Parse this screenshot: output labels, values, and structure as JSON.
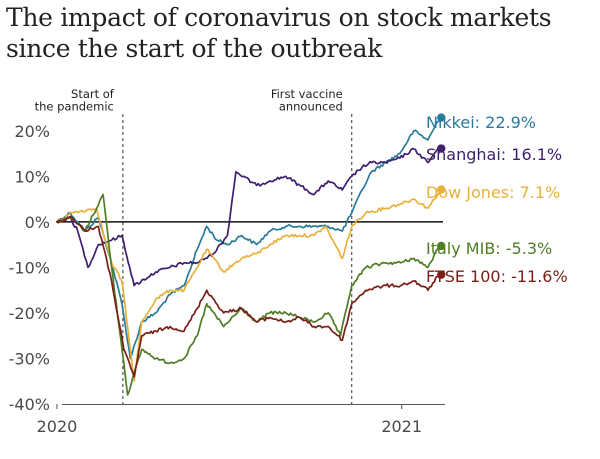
{
  "header": {
    "title_line1": "The impact of coronavirus on stock markets",
    "title_line2": "since the start of the outbreak"
  },
  "chart_data": {
    "type": "line",
    "title": "The impact of coronavirus on stock markets since the start of the outbreak",
    "xlabel": "",
    "ylabel": "",
    "xlim": [
      "2019-12-31",
      "2021-02-16"
    ],
    "ylim": [
      -40,
      25
    ],
    "x_ticks": [
      {
        "date": "2020-01-01",
        "label": "2020"
      },
      {
        "date": "2021-01-01",
        "label": "2021"
      }
    ],
    "y_ticks": [
      {
        "value": 20,
        "label": "20%"
      },
      {
        "value": 10,
        "label": "10%"
      },
      {
        "value": 0,
        "label": "0%"
      },
      {
        "value": -10,
        "label": "-10%"
      },
      {
        "value": -20,
        "label": "-20%"
      },
      {
        "value": -30,
        "label": "-30%"
      },
      {
        "value": -40,
        "label": "-40%"
      }
    ],
    "grid": false,
    "legend": "direct labels at right",
    "annotations": [
      {
        "date": "2020-03-11",
        "lines": [
          "Start of",
          "the pandemic"
        ]
      },
      {
        "date": "2020-11-09",
        "lines": [
          "First vaccine",
          "announced"
        ]
      }
    ],
    "series": [
      {
        "name": "Nikkei",
        "label": "Nikkei: 22.9%",
        "color": "#2a7b9b",
        "points": [
          [
            "2020-01-01",
            0
          ],
          [
            "2020-01-15",
            2
          ],
          [
            "2020-01-31",
            -2
          ],
          [
            "2020-02-14",
            1
          ],
          [
            "2020-02-28",
            -9
          ],
          [
            "2020-03-10",
            -18
          ],
          [
            "2020-03-19",
            -30
          ],
          [
            "2020-03-31",
            -22
          ],
          [
            "2020-04-15",
            -20
          ],
          [
            "2020-04-30",
            -16
          ],
          [
            "2020-05-15",
            -14
          ],
          [
            "2020-05-29",
            -6
          ],
          [
            "2020-06-08",
            -1
          ],
          [
            "2020-06-19",
            -4
          ],
          [
            "2020-06-30",
            -5
          ],
          [
            "2020-07-15",
            -3
          ],
          [
            "2020-07-31",
            -5
          ],
          [
            "2020-08-14",
            -2
          ],
          [
            "2020-08-31",
            -1
          ],
          [
            "2020-09-15",
            -1
          ],
          [
            "2020-09-30",
            -1
          ],
          [
            "2020-10-15",
            -1
          ],
          [
            "2020-10-30",
            -2
          ],
          [
            "2020-11-09",
            2
          ],
          [
            "2020-11-20",
            7
          ],
          [
            "2020-11-30",
            11
          ],
          [
            "2020-12-15",
            13
          ],
          [
            "2020-12-30",
            15
          ],
          [
            "2021-01-14",
            20
          ],
          [
            "2021-01-29",
            18
          ],
          [
            "2021-02-08",
            22
          ],
          [
            "2021-02-12",
            22.9
          ]
        ]
      },
      {
        "name": "Shanghai",
        "label": "Shanghai: 16.1%",
        "color": "#3e1f6e",
        "points": [
          [
            "2020-01-01",
            0
          ],
          [
            "2020-01-15",
            1
          ],
          [
            "2020-01-23",
            -2
          ],
          [
            "2020-02-03",
            -10
          ],
          [
            "2020-02-14",
            -5
          ],
          [
            "2020-02-28",
            -4
          ],
          [
            "2020-03-10",
            -3
          ],
          [
            "2020-03-23",
            -14
          ],
          [
            "2020-04-15",
            -11
          ],
          [
            "2020-04-30",
            -10
          ],
          [
            "2020-05-15",
            -9
          ],
          [
            "2020-05-29",
            -9
          ],
          [
            "2020-06-15",
            -7
          ],
          [
            "2020-06-30",
            -3
          ],
          [
            "2020-07-09",
            11
          ],
          [
            "2020-07-31",
            8
          ],
          [
            "2020-08-14",
            9
          ],
          [
            "2020-08-31",
            10
          ],
          [
            "2020-09-15",
            8
          ],
          [
            "2020-09-30",
            6
          ],
          [
            "2020-10-15",
            9
          ],
          [
            "2020-10-30",
            7
          ],
          [
            "2020-11-09",
            10
          ],
          [
            "2020-11-20",
            12
          ],
          [
            "2020-11-30",
            13
          ],
          [
            "2020-12-15",
            13
          ],
          [
            "2020-12-30",
            14
          ],
          [
            "2021-01-14",
            16
          ],
          [
            "2021-01-29",
            13
          ],
          [
            "2021-02-08",
            16
          ],
          [
            "2021-02-12",
            16.1
          ]
        ]
      },
      {
        "name": "Dow Jones",
        "label": "Dow Jones: 7.1%",
        "color": "#e7b13b",
        "points": [
          [
            "2020-01-01",
            0
          ],
          [
            "2020-01-17",
            2
          ],
          [
            "2020-02-12",
            3
          ],
          [
            "2020-02-28",
            -9
          ],
          [
            "2020-03-10",
            -13
          ],
          [
            "2020-03-23",
            -35
          ],
          [
            "2020-03-31",
            -22
          ],
          [
            "2020-04-15",
            -17
          ],
          [
            "2020-04-30",
            -15
          ],
          [
            "2020-05-15",
            -15
          ],
          [
            "2020-05-29",
            -10
          ],
          [
            "2020-06-08",
            -6
          ],
          [
            "2020-06-26",
            -11
          ],
          [
            "2020-07-15",
            -8
          ],
          [
            "2020-07-31",
            -7
          ],
          [
            "2020-08-14",
            -5
          ],
          [
            "2020-08-31",
            -3
          ],
          [
            "2020-09-15",
            -3
          ],
          [
            "2020-09-30",
            -3
          ],
          [
            "2020-10-12",
            -1
          ],
          [
            "2020-10-30",
            -8
          ],
          [
            "2020-11-09",
            -1
          ],
          [
            "2020-11-24",
            2
          ],
          [
            "2020-12-15",
            3
          ],
          [
            "2020-12-31",
            4
          ],
          [
            "2021-01-14",
            5
          ],
          [
            "2021-01-29",
            3
          ],
          [
            "2021-02-08",
            6
          ],
          [
            "2021-02-12",
            7.1
          ]
        ]
      },
      {
        "name": "Italy MIB",
        "label": "Italy MIB: -5.3%",
        "color": "#4f7d24",
        "points": [
          [
            "2020-01-01",
            0
          ],
          [
            "2020-01-15",
            1
          ],
          [
            "2020-01-31",
            -2
          ],
          [
            "2020-02-19",
            6
          ],
          [
            "2020-02-28",
            -10
          ],
          [
            "2020-03-12",
            -31
          ],
          [
            "2020-03-16",
            -38
          ],
          [
            "2020-03-31",
            -28
          ],
          [
            "2020-04-15",
            -30
          ],
          [
            "2020-04-30",
            -31
          ],
          [
            "2020-05-15",
            -30
          ],
          [
            "2020-05-29",
            -25
          ],
          [
            "2020-06-08",
            -18
          ],
          [
            "2020-06-26",
            -23
          ],
          [
            "2020-07-15",
            -19
          ],
          [
            "2020-07-31",
            -22
          ],
          [
            "2020-08-14",
            -20
          ],
          [
            "2020-08-31",
            -20
          ],
          [
            "2020-09-15",
            -21
          ],
          [
            "2020-09-30",
            -22
          ],
          [
            "2020-10-15",
            -20
          ],
          [
            "2020-10-28",
            -25
          ],
          [
            "2020-11-09",
            -14
          ],
          [
            "2020-11-24",
            -10
          ],
          [
            "2020-12-15",
            -9
          ],
          [
            "2020-12-31",
            -9
          ],
          [
            "2021-01-14",
            -8
          ],
          [
            "2021-01-29",
            -10
          ],
          [
            "2021-02-08",
            -6
          ],
          [
            "2021-02-12",
            -5.3
          ]
        ]
      },
      {
        "name": "FTSE 100",
        "label": "FTSE 100: -11.6%",
        "color": "#7a1f17",
        "points": [
          [
            "2020-01-01",
            0
          ],
          [
            "2020-01-17",
            1
          ],
          [
            "2020-01-31",
            -2
          ],
          [
            "2020-02-14",
            -1
          ],
          [
            "2020-02-28",
            -13
          ],
          [
            "2020-03-12",
            -28
          ],
          [
            "2020-03-23",
            -34
          ],
          [
            "2020-03-31",
            -25
          ],
          [
            "2020-04-15",
            -24
          ],
          [
            "2020-04-30",
            -23
          ],
          [
            "2020-05-15",
            -24
          ],
          [
            "2020-05-29",
            -19
          ],
          [
            "2020-06-08",
            -15
          ],
          [
            "2020-06-26",
            -20
          ],
          [
            "2020-07-15",
            -19
          ],
          [
            "2020-07-31",
            -22
          ],
          [
            "2020-08-14",
            -21
          ],
          [
            "2020-08-31",
            -22
          ],
          [
            "2020-09-15",
            -21
          ],
          [
            "2020-09-30",
            -23
          ],
          [
            "2020-10-15",
            -23
          ],
          [
            "2020-10-30",
            -26
          ],
          [
            "2020-11-09",
            -18
          ],
          [
            "2020-11-24",
            -15
          ],
          [
            "2020-12-15",
            -14
          ],
          [
            "2020-12-31",
            -14
          ],
          [
            "2021-01-14",
            -13
          ],
          [
            "2021-01-29",
            -15
          ],
          [
            "2021-02-08",
            -12
          ],
          [
            "2021-02-12",
            -11.6
          ]
        ]
      }
    ]
  }
}
